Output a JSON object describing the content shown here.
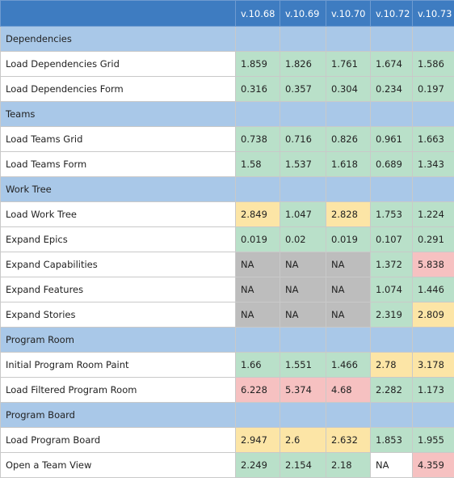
{
  "colors": {
    "header": "#3e7cc1",
    "section": "#a9c8e8",
    "green": "#b9e0c9",
    "yellow": "#fce5a6",
    "red": "#f6c1c1",
    "gray": "#bdbdbd"
  },
  "versions": [
    "v.10.68",
    "v.10.69",
    "v.10.70",
    "v.10.72",
    "v.10.73"
  ],
  "rows": [
    {
      "type": "section",
      "label": "Dependencies"
    },
    {
      "type": "data",
      "label": "Load Dependencies Grid",
      "cells": [
        {
          "v": "1.859",
          "c": "green"
        },
        {
          "v": "1.826",
          "c": "green"
        },
        {
          "v": "1.761",
          "c": "green"
        },
        {
          "v": "1.674",
          "c": "green"
        },
        {
          "v": "1.586",
          "c": "green"
        }
      ]
    },
    {
      "type": "data",
      "label": "Load Dependencies Form",
      "cells": [
        {
          "v": "0.316",
          "c": "green"
        },
        {
          "v": "0.357",
          "c": "green"
        },
        {
          "v": "0.304",
          "c": "green"
        },
        {
          "v": "0.234",
          "c": "green"
        },
        {
          "v": "0.197",
          "c": "green"
        }
      ]
    },
    {
      "type": "section",
      "label": "Teams"
    },
    {
      "type": "data",
      "label": "Load Teams Grid",
      "cells": [
        {
          "v": "0.738",
          "c": "green"
        },
        {
          "v": "0.716",
          "c": "green"
        },
        {
          "v": "0.826",
          "c": "green"
        },
        {
          "v": "0.961",
          "c": "green"
        },
        {
          "v": "1.663",
          "c": "green"
        }
      ]
    },
    {
      "type": "data",
      "label": "Load Teams Form",
      "cells": [
        {
          "v": "1.58",
          "c": "green"
        },
        {
          "v": "1.537",
          "c": "green"
        },
        {
          "v": "1.618",
          "c": "green"
        },
        {
          "v": "0.689",
          "c": "green"
        },
        {
          "v": "1.343",
          "c": "green"
        }
      ]
    },
    {
      "type": "section",
      "label": "Work Tree"
    },
    {
      "type": "data",
      "label": "Load Work Tree",
      "cells": [
        {
          "v": "2.849",
          "c": "yellow"
        },
        {
          "v": "1.047",
          "c": "green"
        },
        {
          "v": "2.828",
          "c": "yellow"
        },
        {
          "v": "1.753",
          "c": "green"
        },
        {
          "v": "1.224",
          "c": "green"
        }
      ]
    },
    {
      "type": "data",
      "label": "Expand Epics",
      "cells": [
        {
          "v": "0.019",
          "c": "green"
        },
        {
          "v": "0.02",
          "c": "green"
        },
        {
          "v": "0.019",
          "c": "green"
        },
        {
          "v": "0.107",
          "c": "green"
        },
        {
          "v": "0.291",
          "c": "green"
        }
      ]
    },
    {
      "type": "data",
      "label": "Expand Capabilities",
      "cells": [
        {
          "v": "NA",
          "c": "gray"
        },
        {
          "v": "NA",
          "c": "gray"
        },
        {
          "v": "NA",
          "c": "gray"
        },
        {
          "v": "1.372",
          "c": "green"
        },
        {
          "v": "5.838",
          "c": "red"
        }
      ]
    },
    {
      "type": "data",
      "label": "Expand Features",
      "cells": [
        {
          "v": "NA",
          "c": "gray"
        },
        {
          "v": "NA",
          "c": "gray"
        },
        {
          "v": "NA",
          "c": "gray"
        },
        {
          "v": "1.074",
          "c": "green"
        },
        {
          "v": "1.446",
          "c": "green"
        }
      ]
    },
    {
      "type": "data",
      "label": "Expand Stories",
      "cells": [
        {
          "v": "NA",
          "c": "gray"
        },
        {
          "v": "NA",
          "c": "gray"
        },
        {
          "v": "NA",
          "c": "gray"
        },
        {
          "v": "2.319",
          "c": "green"
        },
        {
          "v": "2.809",
          "c": "yellow"
        }
      ]
    },
    {
      "type": "section",
      "label": "Program Room"
    },
    {
      "type": "data",
      "label": "Initial Program Room Paint",
      "cells": [
        {
          "v": "1.66",
          "c": "green"
        },
        {
          "v": "1.551",
          "c": "green"
        },
        {
          "v": "1.466",
          "c": "green"
        },
        {
          "v": "2.78",
          "c": "yellow"
        },
        {
          "v": "3.178",
          "c": "yellow"
        }
      ]
    },
    {
      "type": "data",
      "label": "Load Filtered Program Room",
      "cells": [
        {
          "v": "6.228",
          "c": "red"
        },
        {
          "v": "5.374",
          "c": "red"
        },
        {
          "v": "4.68",
          "c": "red"
        },
        {
          "v": "2.282",
          "c": "green"
        },
        {
          "v": "1.173",
          "c": "green"
        }
      ]
    },
    {
      "type": "section",
      "label": "Program Board"
    },
    {
      "type": "data",
      "label": "Load Program Board",
      "cells": [
        {
          "v": "2.947",
          "c": "yellow"
        },
        {
          "v": "2.6",
          "c": "yellow"
        },
        {
          "v": "2.632",
          "c": "yellow"
        },
        {
          "v": "1.853",
          "c": "green"
        },
        {
          "v": "1.955",
          "c": "green"
        }
      ]
    },
    {
      "type": "data",
      "label": "Open a Team View",
      "cells": [
        {
          "v": "2.249",
          "c": "green"
        },
        {
          "v": "2.154",
          "c": "green"
        },
        {
          "v": "2.18",
          "c": "green"
        },
        {
          "v": "NA",
          "c": "white"
        },
        {
          "v": "4.359",
          "c": "red"
        }
      ]
    }
  ]
}
